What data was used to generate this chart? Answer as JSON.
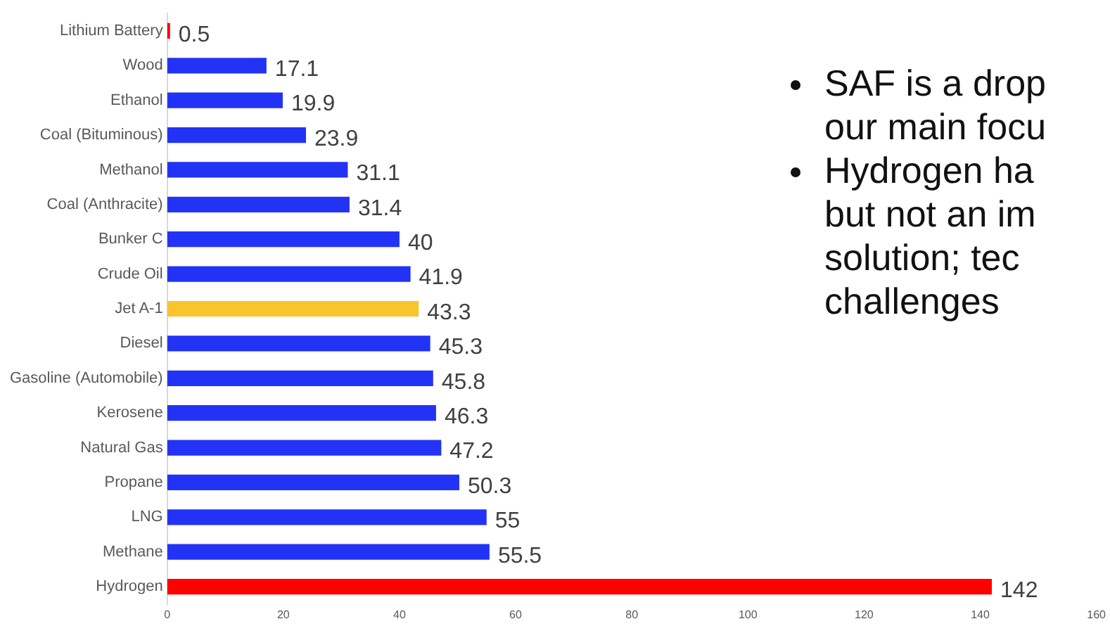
{
  "chart_data": {
    "type": "bar",
    "orientation": "horizontal",
    "categories": [
      "Lithium Battery",
      "Wood",
      "Ethanol",
      "Coal (Bituminous)",
      "Methanol",
      "Coal (Anthracite)",
      "Bunker C",
      "Crude Oil",
      "Jet A-1",
      "Diesel",
      "Gasoline (Automobile)",
      "Kerosene",
      "Natural Gas",
      "Propane",
      "LNG",
      "Methane",
      "Hydrogen"
    ],
    "values": [
      0.5,
      17.1,
      19.9,
      23.9,
      31.1,
      31.4,
      40,
      41.9,
      43.3,
      45.3,
      45.8,
      46.3,
      47.2,
      50.3,
      55,
      55.5,
      142
    ],
    "colors": [
      "#ff0000",
      "#2233f5",
      "#2233f5",
      "#2233f5",
      "#2233f5",
      "#2233f5",
      "#2233f5",
      "#2233f5",
      "#f9c42c",
      "#2233f5",
      "#2233f5",
      "#2233f5",
      "#2233f5",
      "#2233f5",
      "#2233f5",
      "#2233f5",
      "#ff0000"
    ],
    "xlim": [
      0,
      160
    ],
    "xticks": [
      0,
      20,
      40,
      60,
      80,
      100,
      120,
      140,
      160
    ],
    "data_labels": true,
    "grid": false,
    "legend": false,
    "annotations": [
      "SAF is a drop\nour main focu",
      "Hydrogen ha\nbut not an im\nsolution; tec\nchallenges"
    ]
  }
}
